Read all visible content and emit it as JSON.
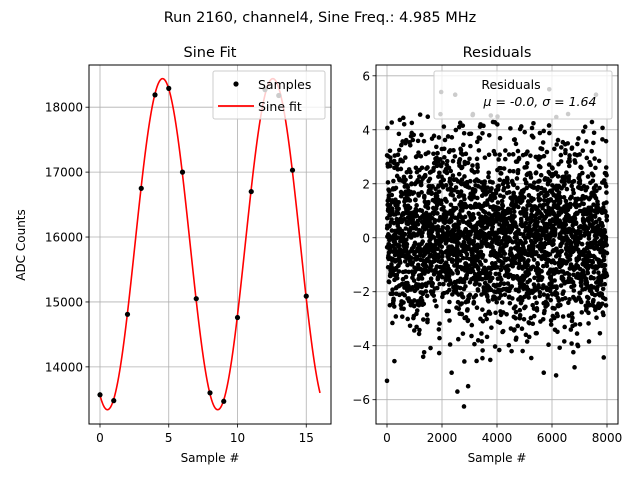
{
  "suptitle": "Run 2160, channel4, Sine Freq.: 4.985 MHz",
  "chart_data": [
    {
      "type": "line",
      "title": "Sine Fit",
      "xlabel": "Sample #",
      "ylabel": "ADC Counts",
      "xlim": [
        -0.8,
        16.8
      ],
      "ylim": [
        13120,
        18650
      ],
      "xticks": [
        0,
        5,
        10,
        15
      ],
      "yticks": [
        14000,
        15000,
        16000,
        17000,
        18000
      ],
      "grid": true,
      "legend_position": "top-right",
      "samples": {
        "name": "Samples",
        "color": "#000000",
        "x": [
          0,
          1,
          2,
          3,
          4,
          5,
          6,
          7,
          8,
          9,
          10,
          11,
          12,
          13,
          14,
          15
        ],
        "y": [
          13570,
          13480,
          14810,
          16750,
          18190,
          18290,
          17000,
          15050,
          13600,
          13470,
          14760,
          16700,
          18270,
          18180,
          17030,
          15090
        ]
      },
      "fit": {
        "name": "Sine fit",
        "color": "#ff0000",
        "x_range": [
          0,
          16
        ],
        "offset": 15890,
        "amplitude": 2550,
        "period": 8.02,
        "peak_x": 4.55
      }
    },
    {
      "type": "scatter",
      "title": "Residuals",
      "xlabel": "Sample #",
      "ylabel": "",
      "xlim": [
        -400,
        8400
      ],
      "ylim": [
        -6.9,
        6.4
      ],
      "xticks": [
        0,
        2000,
        4000,
        6000,
        8000
      ],
      "yticks": [
        -6,
        -4,
        -2,
        0,
        2,
        4,
        6
      ],
      "grid": true,
      "legend_position": "top-right",
      "legend_label": "Residuals",
      "legend_stats": "μ = -0.0, σ = 1.64",
      "color": "#000000",
      "n_points": 8000,
      "mean": 0.0,
      "std": 1.64,
      "outliers": [
        {
          "x": 0,
          "y": -5.3
        },
        {
          "x": 2350,
          "y": -5.0
        },
        {
          "x": 2560,
          "y": -5.7
        },
        {
          "x": 2800,
          "y": -6.25
        },
        {
          "x": 2950,
          "y": -5.5
        },
        {
          "x": 5700,
          "y": -5.0
        },
        {
          "x": 6150,
          "y": -5.1
        },
        {
          "x": 6820,
          "y": -4.8
        },
        {
          "x": 1970,
          "y": 5.4
        },
        {
          "x": 2480,
          "y": 5.3
        },
        {
          "x": 5900,
          "y": 5.5
        },
        {
          "x": 7600,
          "y": 5.3
        }
      ]
    }
  ]
}
